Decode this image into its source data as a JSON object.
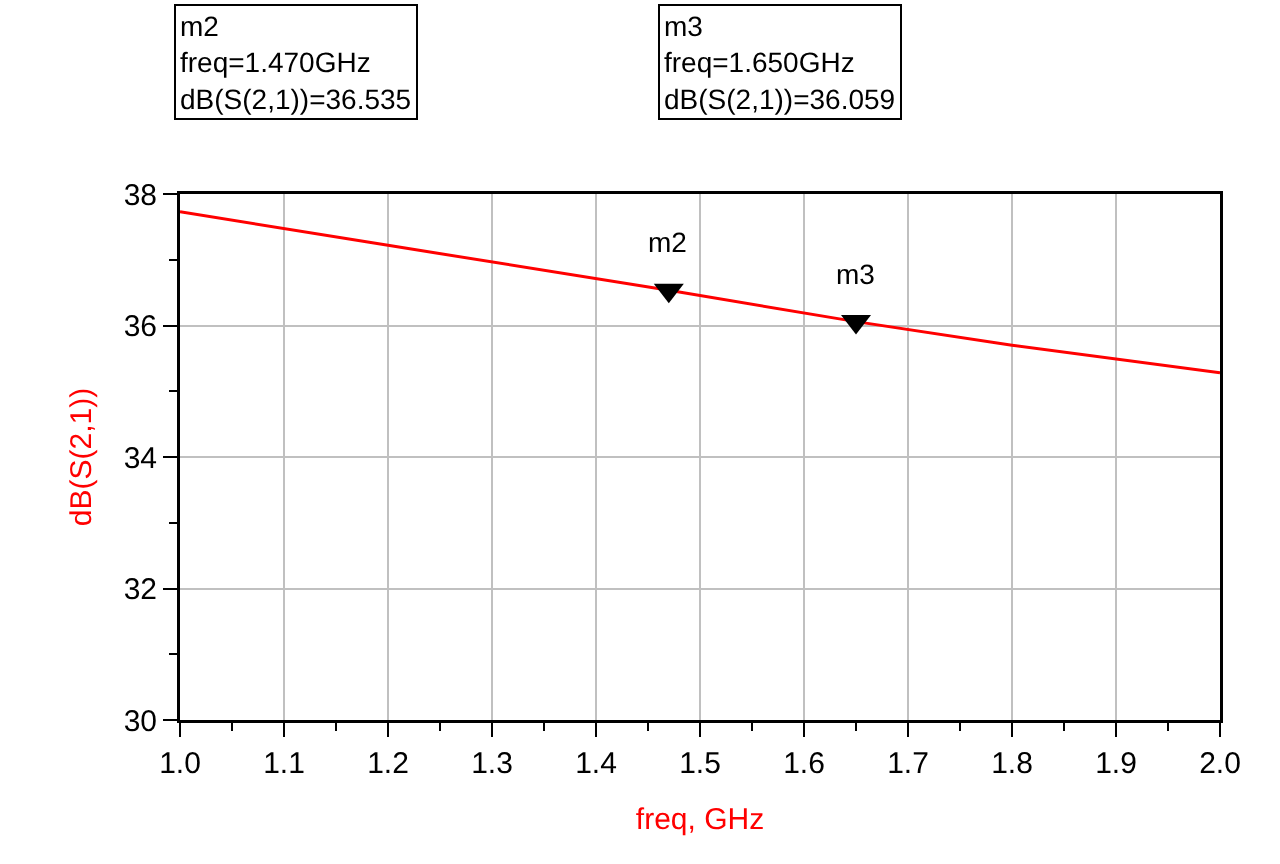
{
  "chart_data": {
    "type": "line",
    "xlabel": "freq, GHz",
    "ylabel": "dB(S(2,1))",
    "xlim": [
      1.0,
      2.0
    ],
    "xticks": [
      {
        "value": 1.0,
        "label": "1.0"
      },
      {
        "value": 1.1,
        "label": "1.1"
      },
      {
        "value": 1.2,
        "label": "1.2"
      },
      {
        "value": 1.3,
        "label": "1.3"
      },
      {
        "value": 1.4,
        "label": "1.4"
      },
      {
        "value": 1.5,
        "label": "1.5"
      },
      {
        "value": 1.6,
        "label": "1.6"
      },
      {
        "value": 1.7,
        "label": "1.7"
      },
      {
        "value": 1.8,
        "label": "1.8"
      },
      {
        "value": 1.9,
        "label": "1.9"
      },
      {
        "value": 2.0,
        "label": "2.0"
      }
    ],
    "ylim": [
      30,
      38
    ],
    "yticks": [
      30,
      32,
      34,
      36,
      38
    ],
    "grid": true,
    "series": [
      {
        "color": "#ff0000",
        "x": [
          1.0,
          1.2,
          1.47,
          1.65,
          1.8,
          2.0
        ],
        "values": [
          37.73,
          37.22,
          36.535,
          36.059,
          35.7,
          35.28
        ],
        "marker": "none"
      },
      {
        "type": "scatter",
        "color": "#000000",
        "x": [
          1.47,
          1.65
        ],
        "values": [
          36.535,
          36.059
        ],
        "marker": "triangle"
      }
    ],
    "annotations": [
      "m2\nfreq=1.470GHz\ndB(S(2,1))=36.535",
      "m3\nfreq=1.650GHz\ndB(S(2,1))=36.059",
      {
        "text": "m2",
        "x": 1.47,
        "y": 36.535
      },
      {
        "text": "m3",
        "x": 1.65,
        "y": 36.059
      }
    ]
  }
}
